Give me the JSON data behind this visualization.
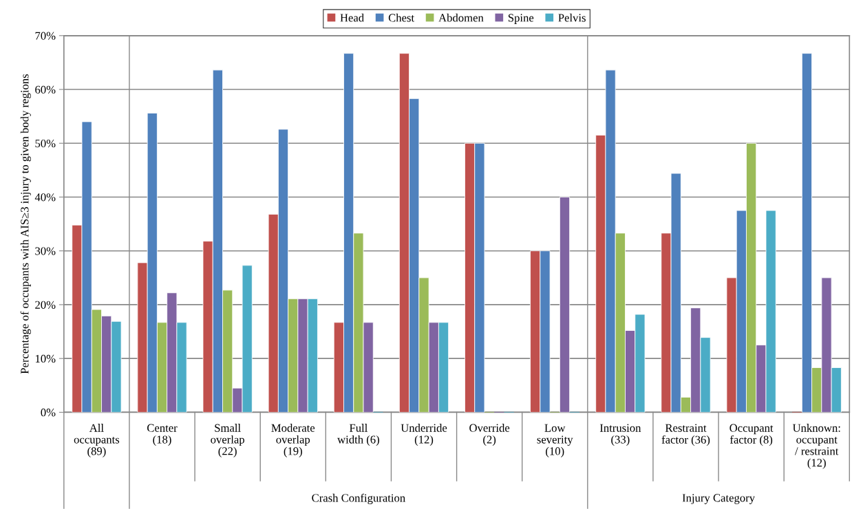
{
  "chart_data": {
    "type": "bar",
    "categories": [
      "All\noccupants\n(89)",
      "Center\n(18)",
      "Small\noverlap\n(22)",
      "Moderate\noverlap\n(19)",
      "Full\nwidth (6)",
      "Underride\n(12)",
      "Override\n(2)",
      "Low\nseverity\n(10)",
      "Intrusion\n(33)",
      "Restraint\nfactor (36)",
      "Occupant\nfactor (8)",
      "Unknown:\noccupant\n/ restraint\n(12)"
    ],
    "series": [
      {
        "name": "Head",
        "color": "#c0504d",
        "values": [
          34.8,
          27.8,
          31.8,
          36.8,
          16.7,
          66.7,
          50,
          30,
          51.5,
          33.3,
          25,
          0
        ]
      },
      {
        "name": "Chest",
        "color": "#4f81bd",
        "values": [
          54,
          55.6,
          63.6,
          52.6,
          66.7,
          58.3,
          50,
          30,
          63.6,
          44.4,
          37.5,
          66.7
        ]
      },
      {
        "name": "Abdomen",
        "color": "#9bbb59",
        "values": [
          19.1,
          16.7,
          22.7,
          21.1,
          33.3,
          25,
          0,
          0,
          33.3,
          2.8,
          50,
          8.3
        ]
      },
      {
        "name": "Spine",
        "color": "#8064a2",
        "values": [
          17.9,
          22.2,
          4.5,
          21.1,
          16.7,
          16.7,
          0,
          40,
          15.2,
          19.4,
          12.5,
          25
        ]
      },
      {
        "name": "Pelvis",
        "color": "#4bacc6",
        "values": [
          16.9,
          16.7,
          27.3,
          21.1,
          0,
          16.7,
          0,
          0,
          18.2,
          13.9,
          37.5,
          8.3
        ]
      }
    ],
    "ylabel": "Percentage of occupants with AIS≥3 injury to given body regions",
    "ylim": [
      0,
      70
    ],
    "yticks": [
      {
        "value": 0,
        "label": "0%"
      },
      {
        "value": 10,
        "label": "10%"
      },
      {
        "value": 20,
        "label": "20%"
      },
      {
        "value": 30,
        "label": "30%"
      },
      {
        "value": 40,
        "label": "40%"
      },
      {
        "value": 50,
        "label": "50%"
      },
      {
        "value": 60,
        "label": "60%"
      },
      {
        "value": 70,
        "label": "70%"
      }
    ],
    "grid": "y",
    "legend": "top",
    "annotations": [
      "Crash Configuration",
      "Injury Category"
    ]
  }
}
